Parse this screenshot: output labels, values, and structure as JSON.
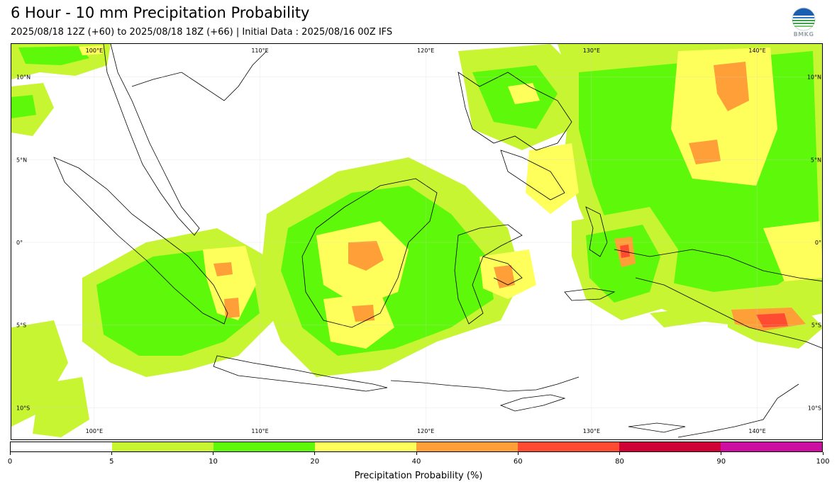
{
  "header": {
    "title": "6 Hour - 10 mm Precipitation Probability",
    "subtitle": "2025/08/18 12Z (+60) to 2025/08/18 18Z (+66) | Initial Data : 2025/08/16 00Z IFS",
    "logo_text": "BMKG"
  },
  "map": {
    "lon_range": [
      95,
      144
    ],
    "lat_range": [
      -12,
      12
    ],
    "lon_labels": [
      "100°E",
      "110°E",
      "120°E",
      "130°E",
      "140°E"
    ],
    "lat_labels": [
      "10°N",
      "5°N",
      "0°",
      "5°S",
      "10°S"
    ],
    "gridlines": true
  },
  "colorbar": {
    "label": "Precipitation Probability (%)",
    "ticks": [
      "0",
      "5",
      "10",
      "20",
      "40",
      "60",
      "80",
      "90",
      "100"
    ],
    "colors": [
      "#ffffff",
      "#c8f532",
      "#5ef80a",
      "#ffff5c",
      "#ff9f38",
      "#ff4b31",
      "#cf0335",
      "#cc0fa0"
    ]
  }
}
